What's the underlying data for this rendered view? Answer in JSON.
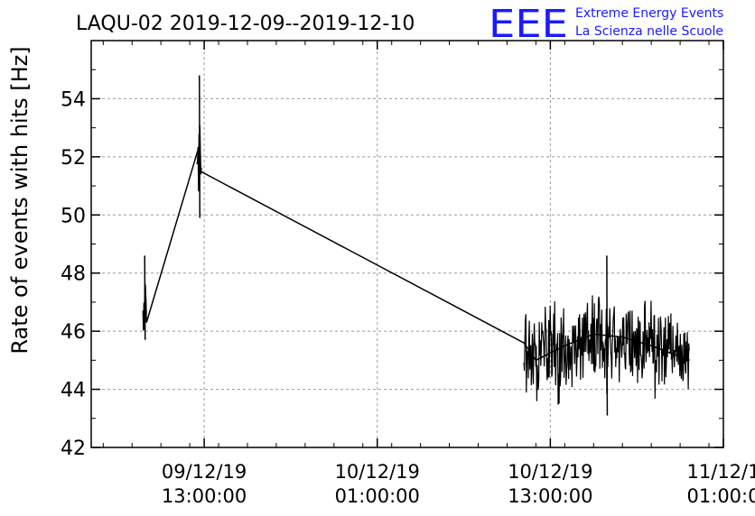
{
  "chart_data": {
    "type": "line",
    "title": "LAQU-02 2019-12-09--2019-12-10",
    "ylabel": "Rate of events with hits [Hz]",
    "xlabel": "",
    "ylim": [
      42,
      56
    ],
    "yticks": [
      42,
      44,
      46,
      48,
      50,
      52,
      54
    ],
    "ytick_labels": [
      "42",
      "44",
      "46",
      "48",
      "50",
      "52",
      "54"
    ],
    "xlim": [
      "2019-12-09T05:10:00",
      "2019-12-11T01:00:00"
    ],
    "xticks": [
      {
        "time": "2019-12-09T13:00:00",
        "line1": "09/12/19",
        "line2": "13:00:00"
      },
      {
        "time": "2019-12-10T01:00:00",
        "line1": "10/12/19",
        "line2": "01:00:00"
      },
      {
        "time": "2019-12-10T13:00:00",
        "line1": "10/12/19",
        "line2": "13:00:00"
      },
      {
        "time": "2019-12-11T01:00:00",
        "line1": "11/12/1",
        "line2": "01:00:0"
      }
    ],
    "grid": true,
    "series": [
      {
        "color": "#000000",
        "segments": [
          {
            "time": "2019-12-09T08:50:00",
            "value": 46.5
          },
          {
            "time": "2019-12-09T08:55:00",
            "value": 47.6
          },
          {
            "time": "2019-12-09T09:00:00",
            "value": 46.3
          },
          {
            "time": "2019-12-09T12:40:00",
            "value": 52.4
          },
          {
            "time": "2019-12-09T12:45:00",
            "value": 51.5
          },
          {
            "time": "2019-12-10T11:10:00",
            "value": 45.6
          },
          {
            "time": "2019-12-10T12:00:00",
            "value": 45.0
          },
          {
            "time": "2019-12-10T14:00:00",
            "value": 45.5
          },
          {
            "time": "2019-12-10T16:00:00",
            "value": 45.9
          },
          {
            "time": "2019-12-10T18:00:00",
            "value": 45.8
          },
          {
            "time": "2019-12-10T20:00:00",
            "value": 45.5
          },
          {
            "time": "2019-12-10T22:40:00",
            "value": 45.0
          }
        ],
        "noisy_bands": [
          {
            "start": "2019-12-09T08:45:00",
            "end": "2019-12-09T09:00:00",
            "min": 45.7,
            "max": 48.6
          },
          {
            "start": "2019-12-09T12:30:00",
            "end": "2019-12-09T12:50:00",
            "min": 49.9,
            "max": 54.8
          },
          {
            "start": "2019-12-10T11:10:00",
            "end": "2019-12-10T22:40:00",
            "min": 43.1,
            "max": 48.6
          }
        ]
      }
    ]
  },
  "logo": {
    "mark": "EEE",
    "line1": "Extreme Energy Events",
    "line2": "La Scienza nelle Scuole",
    "color": "#1a1aff"
  }
}
